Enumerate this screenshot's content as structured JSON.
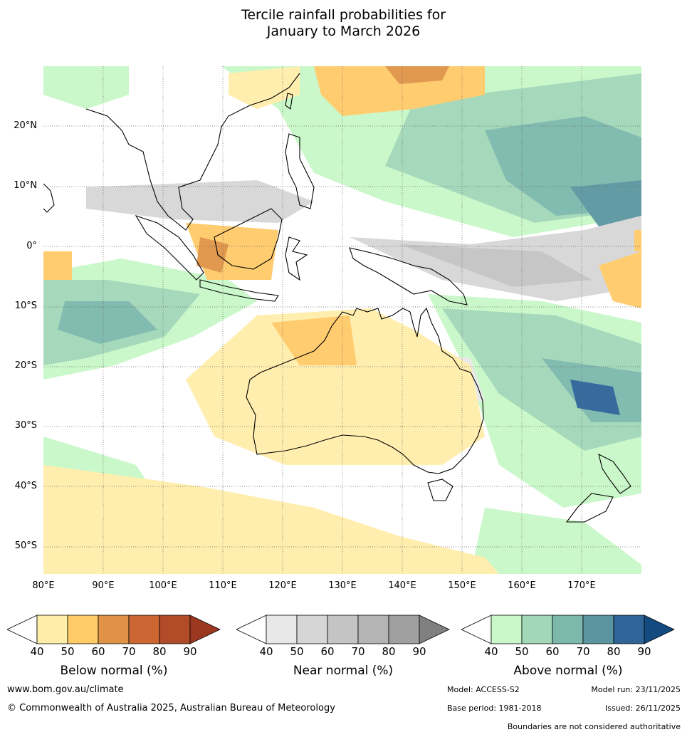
{
  "title": {
    "line1": "Tercile rainfall probabilities for",
    "line2": "January to March 2026"
  },
  "map": {
    "lat_labels": [
      "20°N",
      "10°N",
      "0°",
      "10°S",
      "20°S",
      "30°S",
      "40°S",
      "50°S"
    ],
    "lon_labels": [
      "80°E",
      "90°E",
      "100°E",
      "110°E",
      "120°E",
      "130°E",
      "140°E",
      "150°E",
      "160°E",
      "170°E"
    ]
  },
  "colorbars": {
    "ticks": [
      "40",
      "50",
      "60",
      "70",
      "80",
      "90"
    ],
    "below": {
      "label": "Below normal (%)",
      "colors": [
        "#ffeeaa",
        "#ffca68",
        "#e09346",
        "#cc6632",
        "#b04c28",
        "#9c3820"
      ]
    },
    "near": {
      "label": "Near normal (%)",
      "colors": [
        "#e8e8e8",
        "#d6d6d6",
        "#c4c4c4",
        "#b4b4b4",
        "#a0a0a0",
        "#808080"
      ]
    },
    "above": {
      "label": "Above normal (%)",
      "colors": [
        "#c8f8c8",
        "#a2d8b8",
        "#7cb8ac",
        "#5b96a0",
        "#2e6498",
        "#134b80"
      ]
    }
  },
  "footer": {
    "website": "www.bom.gov.au/climate",
    "copyright": "© Commonwealth of Australia 2025, Australian Bureau of Meteorology",
    "model": "Model: ACCESS-S2",
    "model_run": "Model run: 23/11/2025",
    "base_period": "Base period: 1981-2018",
    "issued": "Issued: 26/11/2025",
    "disclaimer": "Boundaries are not considered authoritative"
  }
}
